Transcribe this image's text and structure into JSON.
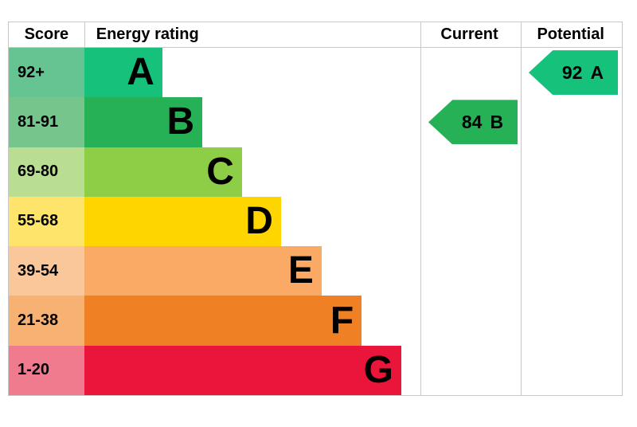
{
  "header": {
    "score": "Score",
    "energy_rating": "Energy rating",
    "current": "Current",
    "potential": "Potential"
  },
  "bands": [
    {
      "letter": "A",
      "score": "92+",
      "color": "#16c17c",
      "score_color": "#66c493",
      "width_pct": 23.2
    },
    {
      "letter": "B",
      "score": "81-91",
      "color": "#27b156",
      "score_color": "#76c58c",
      "width_pct": 35.1
    },
    {
      "letter": "C",
      "score": "69-80",
      "color": "#8dce46",
      "score_color": "#bade91",
      "width_pct": 46.9
    },
    {
      "letter": "D",
      "score": "55-68",
      "color": "#ffd500",
      "score_color": "#ffe46b",
      "width_pct": 58.5
    },
    {
      "letter": "E",
      "score": "39-54",
      "color": "#fbaa65",
      "score_color": "#fac79a",
      "width_pct": 70.6
    },
    {
      "letter": "F",
      "score": "21-38",
      "color": "#ef8023",
      "score_color": "#f6b173",
      "width_pct": 82.5
    },
    {
      "letter": "G",
      "score": "1-20",
      "color": "#e9153b",
      "score_color": "#f17b8e",
      "width_pct": 94.3
    }
  ],
  "current": {
    "value": "84",
    "letter": "B",
    "color": "#27b156"
  },
  "potential": {
    "value": "92",
    "letter": "A",
    "color": "#16c17c"
  },
  "chart_data": {
    "type": "bar",
    "title": "Energy rating",
    "categories": [
      "A",
      "B",
      "C",
      "D",
      "E",
      "F",
      "G"
    ],
    "score_ranges": [
      "92+",
      "81-91",
      "69-80",
      "55-68",
      "39-54",
      "21-38",
      "1-20"
    ],
    "series": [
      {
        "name": "band_bar_width_pct",
        "values": [
          23.2,
          35.1,
          46.9,
          58.5,
          70.6,
          82.5,
          94.3
        ]
      }
    ],
    "band_colors": [
      "#16c17c",
      "#27b156",
      "#8dce46",
      "#ffd500",
      "#fbaa65",
      "#ef8023",
      "#e9153b"
    ],
    "annotations": {
      "current": "84 B",
      "potential": "92 A"
    },
    "columns": [
      "Score",
      "Energy rating",
      "Current",
      "Potential"
    ],
    "grid": false,
    "legend_position": "none"
  }
}
